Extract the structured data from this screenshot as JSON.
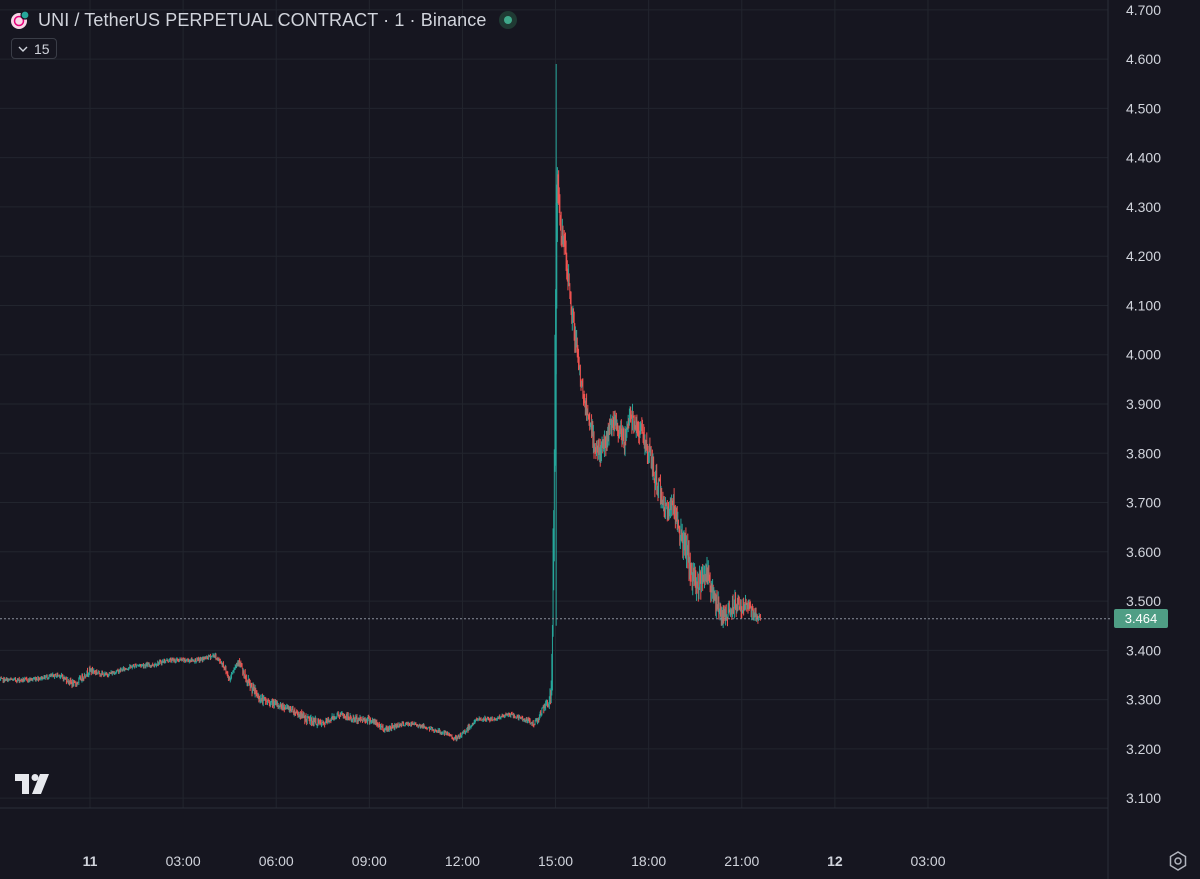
{
  "header": {
    "title": "UNI / TetherUS PERPETUAL CONTRACT · 1 · Binance",
    "interval_button_label": "15"
  },
  "price_badge": "3.464",
  "colors": {
    "background": "#161620",
    "grid": "#22252e",
    "up": "#26a69a",
    "down": "#ef5350",
    "badge": "#4f9e85"
  },
  "icons": [
    "symbol-logo-icon",
    "status-dot-icon",
    "chevron-down-icon",
    "tradingview-logo-icon",
    "settings-icon"
  ],
  "chart_data": {
    "type": "line",
    "title": "",
    "xlabel": "",
    "ylabel": "",
    "y_axis_side": "right",
    "ylim": [
      3.08,
      4.72
    ],
    "y_ticks": [
      "4.700",
      "4.600",
      "4.500",
      "4.400",
      "4.300",
      "4.200",
      "4.100",
      "4.000",
      "3.900",
      "3.800",
      "3.700",
      "3.600",
      "3.500",
      "3.400",
      "3.300",
      "3.200",
      "3.100"
    ],
    "x_tick_labels": [
      "11",
      "03:00",
      "06:00",
      "09:00",
      "12:00",
      "15:00",
      "18:00",
      "21:00",
      "12",
      "03:00"
    ],
    "x_tick_hours": [
      0,
      3,
      6,
      9,
      12,
      15,
      18,
      21,
      24,
      27
    ],
    "x_range_hours": [
      -2.9,
      32.8
    ],
    "grid": true,
    "last_price": 3.464,
    "series": [
      {
        "hours": [
          -2.9,
          -2.0,
          -1.0,
          -0.5,
          0.0,
          0.5,
          1.0,
          1.5,
          2.0,
          2.5,
          3.0,
          3.5,
          4.0,
          4.3,
          4.5,
          4.6,
          4.8,
          5.0,
          5.5,
          6.0,
          6.5,
          7.0,
          7.5,
          8.0,
          8.5,
          9.0,
          9.5,
          10.0,
          10.5,
          11.0,
          11.5,
          11.8,
          12.0,
          12.3,
          12.5,
          13.0,
          13.5,
          14.0,
          14.3,
          14.6,
          14.75,
          14.85,
          14.9,
          14.95,
          15.0,
          15.05,
          15.1,
          15.2,
          15.3,
          15.4,
          15.5,
          15.6,
          15.7,
          15.8,
          15.9,
          16.0,
          16.2,
          16.4,
          16.6,
          16.8,
          17.0,
          17.2,
          17.4,
          17.6,
          17.8,
          18.0,
          18.2,
          18.4,
          18.6,
          18.8,
          19.0,
          19.2,
          19.4,
          19.6,
          19.8,
          20.0,
          20.2,
          20.4,
          20.6,
          20.8,
          21.0,
          21.2,
          21.4,
          21.6
        ],
        "close": [
          3.34,
          3.34,
          3.35,
          3.33,
          3.36,
          3.35,
          3.36,
          3.37,
          3.37,
          3.38,
          3.38,
          3.38,
          3.39,
          3.37,
          3.34,
          3.36,
          3.38,
          3.34,
          3.3,
          3.29,
          3.28,
          3.26,
          3.25,
          3.27,
          3.26,
          3.26,
          3.24,
          3.25,
          3.25,
          3.24,
          3.23,
          3.22,
          3.23,
          3.25,
          3.26,
          3.26,
          3.27,
          3.26,
          3.25,
          3.28,
          3.29,
          3.31,
          3.45,
          3.7,
          4.1,
          4.35,
          4.3,
          4.25,
          4.2,
          4.15,
          4.1,
          4.05,
          4.0,
          3.95,
          3.92,
          3.88,
          3.83,
          3.8,
          3.82,
          3.86,
          3.85,
          3.82,
          3.88,
          3.86,
          3.84,
          3.8,
          3.75,
          3.72,
          3.68,
          3.7,
          3.64,
          3.6,
          3.55,
          3.53,
          3.57,
          3.53,
          3.49,
          3.47,
          3.48,
          3.5,
          3.49,
          3.49,
          3.47,
          3.464
        ],
        "high": [
          3.35,
          3.35,
          3.36,
          3.35,
          3.37,
          3.36,
          3.37,
          3.38,
          3.38,
          3.39,
          3.39,
          3.39,
          3.39,
          3.38,
          3.36,
          3.37,
          3.38,
          3.36,
          3.32,
          3.31,
          3.29,
          3.28,
          3.27,
          3.28,
          3.27,
          3.27,
          3.26,
          3.26,
          3.26,
          3.25,
          3.24,
          3.23,
          3.24,
          3.26,
          3.27,
          3.27,
          3.27,
          3.27,
          3.27,
          3.3,
          3.31,
          3.35,
          3.55,
          3.95,
          4.59,
          4.47,
          4.4,
          4.3,
          4.28,
          4.22,
          4.15,
          4.1,
          4.06,
          4.0,
          3.96,
          3.92,
          3.88,
          3.86,
          3.88,
          3.9,
          3.89,
          3.88,
          3.92,
          3.9,
          3.88,
          3.85,
          3.8,
          3.76,
          3.72,
          3.74,
          3.69,
          3.65,
          3.62,
          3.58,
          3.62,
          3.58,
          3.54,
          3.52,
          3.53,
          3.55,
          3.53,
          3.52,
          3.51,
          3.49
        ],
        "low": [
          3.33,
          3.33,
          3.34,
          3.32,
          3.34,
          3.34,
          3.35,
          3.36,
          3.36,
          3.37,
          3.37,
          3.37,
          3.37,
          3.35,
          3.33,
          3.34,
          3.35,
          3.31,
          3.28,
          3.28,
          3.26,
          3.24,
          3.24,
          3.25,
          3.24,
          3.24,
          3.23,
          3.24,
          3.24,
          3.23,
          3.22,
          3.21,
          3.22,
          3.23,
          3.25,
          3.25,
          3.25,
          3.25,
          3.24,
          3.26,
          3.27,
          3.28,
          3.3,
          3.45,
          3.7,
          4.2,
          4.22,
          4.18,
          4.15,
          4.08,
          4.03,
          3.98,
          3.93,
          3.9,
          3.87,
          3.83,
          3.77,
          3.75,
          3.77,
          3.81,
          3.8,
          3.78,
          3.82,
          3.81,
          3.78,
          3.74,
          3.68,
          3.65,
          3.63,
          3.64,
          3.58,
          3.52,
          3.48,
          3.47,
          3.5,
          3.46,
          3.44,
          3.44,
          3.45,
          3.46,
          3.46,
          3.46,
          3.45,
          3.45
        ]
      }
    ]
  }
}
